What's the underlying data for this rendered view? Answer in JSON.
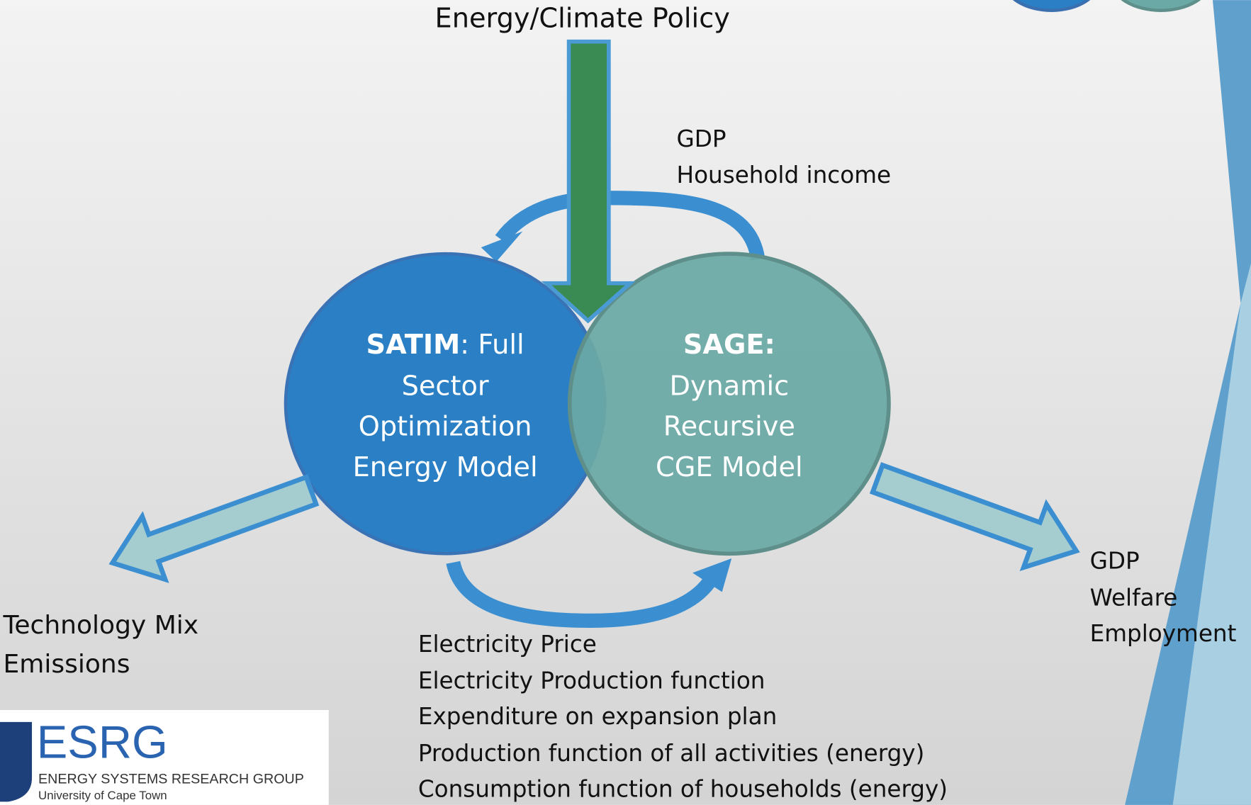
{
  "top_label": "Energy/Climate Policy",
  "top_feedback": [
    "GDP",
    "Household income"
  ],
  "nodes": [
    {
      "title": "SATIM",
      "lines": [
        ": Full",
        "Sector",
        "Optimization",
        "Energy Model"
      ]
    },
    {
      "title": "SAGE:",
      "lines": [
        "Dynamic",
        "Recursive",
        "CGE Model"
      ]
    }
  ],
  "left_outputs": [
    "Technology Mix",
    "Emissions"
  ],
  "right_outputs": [
    "GDP",
    "Welfare",
    "Employment"
  ],
  "bottom_feedback": [
    "Electricity Price",
    "Electricity Production function",
    "Expenditure on expansion plan",
    "Production function of all activities (energy)",
    "Consumption function of households (energy)"
  ],
  "logo": {
    "acronym": "ESRG",
    "name": "ENERGY SYSTEMS RESEARCH GROUP",
    "university": "University of Cape Town"
  }
}
